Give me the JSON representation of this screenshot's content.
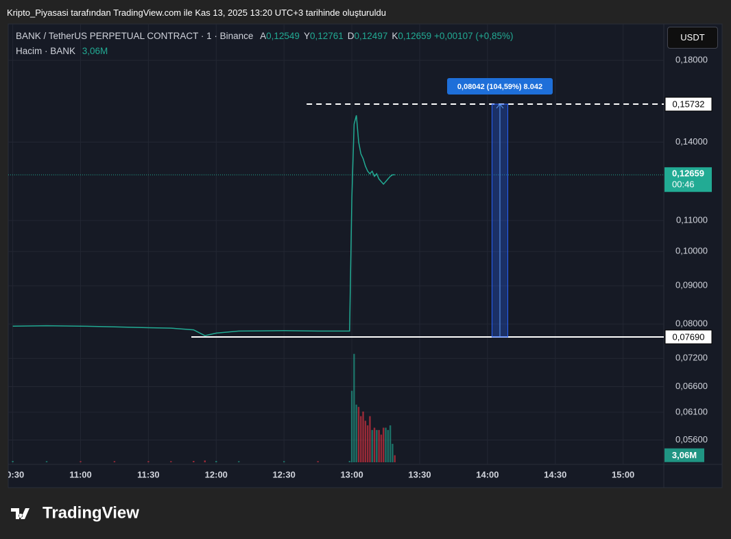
{
  "header": {
    "caption": "Kripto_Piyasasi tarafından TradingView.com ile Kas 13, 2025 13:20 UTC+3 tarihinde oluşturuldu",
    "brand": "TradingView"
  },
  "chart_data": {
    "type": "line",
    "title": "BANK / TetherUS PERPETUAL CONTRACT · 1 · Binance",
    "ohlc": [
      {
        "key": "A",
        "value": "0,12549"
      },
      {
        "key": "Y",
        "value": "0,12761"
      },
      {
        "key": "D",
        "value": "0,12497"
      },
      {
        "key": "K",
        "value": "0,12659"
      }
    ],
    "change": "+0,00107 (+0,85%)",
    "volume_title": "Hacim · BANK",
    "volume_last_label": "3,06M",
    "currency": "USDT",
    "color": "#22ab94",
    "down_color": "#f23645",
    "x": [
      "10:30",
      "10:45",
      "11:00",
      "11:15",
      "11:30",
      "11:40",
      "11:50",
      "11:55",
      "12:00",
      "12:10",
      "12:30",
      "12:45",
      "12:59",
      "13:00",
      "13:01",
      "13:02",
      "13:03",
      "13:04",
      "13:05",
      "13:06",
      "13:07",
      "13:08",
      "13:09",
      "13:10",
      "13:11",
      "13:12",
      "13:13",
      "13:14",
      "13:15",
      "13:16",
      "13:17",
      "13:18",
      "13:19"
    ],
    "values": [
      0.0795,
      0.0796,
      0.0795,
      0.0793,
      0.0791,
      0.079,
      0.0786,
      0.0772,
      0.0778,
      0.0783,
      0.0784,
      0.0783,
      0.0783,
      0.118,
      0.148,
      0.152,
      0.14,
      0.135,
      0.133,
      0.13,
      0.128,
      0.127,
      0.128,
      0.126,
      0.127,
      0.125,
      0.124,
      0.123,
      0.124,
      0.125,
      0.126,
      0.1266,
      0.12659
    ],
    "volume": [
      0.6,
      0.5,
      0.5,
      0.5,
      0.5,
      0.5,
      0.6,
      0.8,
      0.6,
      0.5,
      0.5,
      0.5,
      0.6,
      31,
      47,
      25,
      24,
      20,
      22,
      18,
      16,
      20,
      14,
      15,
      14,
      14,
      12,
      15,
      15,
      14,
      16,
      8,
      3.06
    ],
    "volume_ylim": [
      0,
      190
    ],
    "xlim": [
      "10:28",
      "15:18"
    ],
    "xticks": [
      "10:30",
      "11:00",
      "11:30",
      "12:00",
      "12:30",
      "13:00",
      "13:30",
      "14:00",
      "14:30",
      "15:00"
    ],
    "ylim": [
      0.0523,
      0.2013
    ],
    "log_scale": true,
    "grid": true,
    "yticks": [
      {
        "value": 0.18,
        "label": "0,18000"
      },
      {
        "value": 0.14,
        "label": "0,14000"
      },
      {
        "value": 0.11,
        "label": "0,11000"
      },
      {
        "value": 0.1,
        "label": "0,10000"
      },
      {
        "value": 0.09,
        "label": "0,09000"
      },
      {
        "value": 0.08,
        "label": "0,08000"
      },
      {
        "value": 0.072,
        "label": "0,07200"
      },
      {
        "value": 0.066,
        "label": "0,06600"
      },
      {
        "value": 0.061,
        "label": "0,06100"
      },
      {
        "value": 0.056,
        "label": "0,05600"
      }
    ],
    "price_lines": [
      {
        "value": 0.15732,
        "label": "0,15732",
        "style": "dashed",
        "from": "12:40"
      },
      {
        "value": 0.0769,
        "label": "0,07690",
        "style": "solid",
        "from": "11:49"
      }
    ],
    "last_price": {
      "value": 0.12659,
      "label": "0,12659",
      "countdown": "00:46"
    },
    "measure": {
      "from": 0.0769,
      "to": 0.15732,
      "x": [
        "14:02",
        "14:09"
      ],
      "label": "0,08042 (104,59%) 8.042"
    }
  }
}
